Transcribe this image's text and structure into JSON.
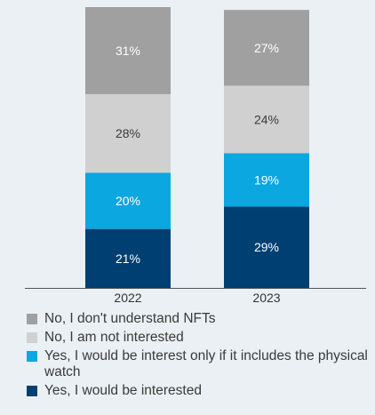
{
  "chart_data": {
    "type": "bar",
    "stacked": true,
    "categories": [
      "2022",
      "2023"
    ],
    "series": [
      {
        "name": "Yes, I would be interested",
        "values": [
          21,
          29
        ],
        "color": "#003f72",
        "label_color": "#ffffff"
      },
      {
        "name": "Yes, I would be interest only if it includes the physical watch",
        "values": [
          20,
          19
        ],
        "color": "#0aa7e0",
        "label_color": "#ffffff"
      },
      {
        "name": "No, I am not interested",
        "values": [
          28,
          24
        ],
        "color": "#d0d0d0",
        "label_color": "#3a3a3a"
      },
      {
        "name": "No, I don't understand NFTs",
        "values": [
          31,
          27
        ],
        "color": "#a0a0a0",
        "label_color": "#ffffff"
      }
    ],
    "data_labels": [
      [
        "21%",
        "29%"
      ],
      [
        "20%",
        "19%"
      ],
      [
        "28%",
        "24%"
      ],
      [
        "31%",
        "27%"
      ]
    ],
    "legend_order": [
      3,
      2,
      1,
      0
    ],
    "ylim": [
      0,
      100
    ],
    "legend_position": "bottom",
    "grid": false
  }
}
